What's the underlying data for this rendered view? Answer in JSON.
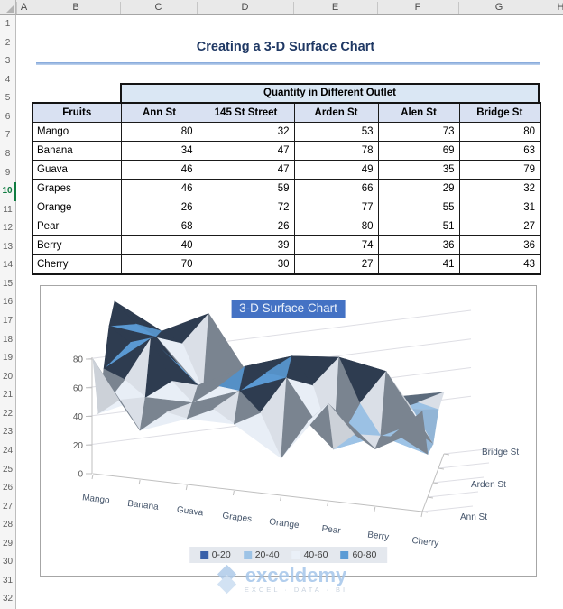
{
  "sheet": {
    "columns": [
      "A",
      "B",
      "C",
      "D",
      "E",
      "F",
      "G",
      "H"
    ],
    "rows": [
      "1",
      "2",
      "3",
      "4",
      "5",
      "6",
      "7",
      "8",
      "9",
      "10",
      "11",
      "12",
      "13",
      "14",
      "15",
      "16",
      "17",
      "18",
      "19",
      "20",
      "21",
      "22",
      "23",
      "24",
      "25",
      "26",
      "27",
      "28",
      "29",
      "30",
      "31",
      "32"
    ],
    "active_row": "10"
  },
  "title": {
    "text": "Creating a 3-D Surface Chart"
  },
  "table": {
    "banner": "Quantity in Different Outlet",
    "headers": [
      "Fruits",
      "Ann St",
      "145 St Street",
      "Arden St",
      "Alen St",
      "Bridge St"
    ],
    "rows": [
      [
        "Mango",
        80,
        32,
        53,
        73,
        80
      ],
      [
        "Banana",
        34,
        47,
        78,
        69,
        63
      ],
      [
        "Guava",
        46,
        47,
        49,
        35,
        79
      ],
      [
        "Grapes",
        46,
        59,
        66,
        29,
        32
      ],
      [
        "Orange",
        26,
        72,
        77,
        55,
        31
      ],
      [
        "Pear",
        68,
        26,
        80,
        51,
        27
      ],
      [
        "Berry",
        40,
        39,
        74,
        36,
        36
      ],
      [
        "Cherry",
        70,
        30,
        27,
        41,
        43
      ]
    ]
  },
  "chart_data": {
    "type": "surface3d",
    "title": "3-D Surface Chart",
    "categories": [
      "Mango",
      "Banana",
      "Guava",
      "Grapes",
      "Orange",
      "Pear",
      "Berry",
      "Cherry"
    ],
    "series": [
      {
        "name": "Ann St",
        "values": [
          80,
          34,
          46,
          46,
          26,
          68,
          40,
          70
        ]
      },
      {
        "name": "145 St Street",
        "values": [
          32,
          47,
          47,
          59,
          72,
          26,
          39,
          30
        ]
      },
      {
        "name": "Arden St",
        "values": [
          53,
          78,
          49,
          66,
          77,
          80,
          74,
          27
        ]
      },
      {
        "name": "Alen St",
        "values": [
          73,
          69,
          35,
          29,
          55,
          51,
          36,
          41
        ]
      },
      {
        "name": "Bridge St",
        "values": [
          80,
          63,
          79,
          32,
          31,
          27,
          36,
          43
        ]
      }
    ],
    "value_axis_ticks": [
      0,
      20,
      40,
      60,
      80
    ],
    "value_axis_range": [
      0,
      80
    ],
    "series_axis_labels_shown": [
      "Ann St",
      "Arden St",
      "Bridge St"
    ],
    "legend_position": "bottom",
    "legend": [
      {
        "label": "0-20",
        "color": "#3A61A9"
      },
      {
        "label": "20-40",
        "color": "#9DC3E6"
      },
      {
        "label": "40-60",
        "color": "#EAF0F8"
      },
      {
        "label": "60-80",
        "color": "#5B9BD5"
      }
    ]
  },
  "watermark": {
    "brand": "exceldemy",
    "tagline": "EXCEL · DATA · BI"
  },
  "colors": {
    "accent_blue": "#4472C4",
    "title_text": "#1F3864",
    "underline_blue": "#8EB4E3",
    "banner_bg": "#DAE7F4",
    "header_bg": "#D9E1F2",
    "active_row_green": "#107C41",
    "watermark_blue": "#A5C6EA",
    "axis_text": "#595959",
    "category_text": "#44546A",
    "grid_line": "#DEDEE4",
    "axis_line": "#BFBFBF",
    "backface_darks": "#273349,#5C6B7C,#7A8490,#2E3C50"
  }
}
